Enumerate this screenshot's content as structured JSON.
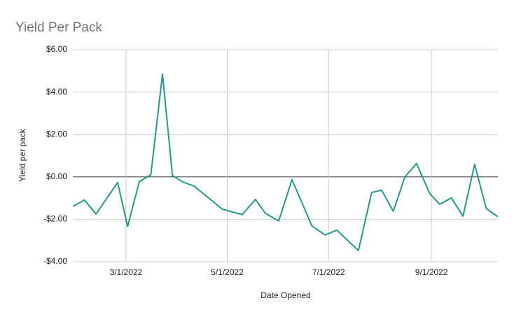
{
  "chart_data": {
    "type": "line",
    "title": "Yield Per Pack",
    "x_label": "Date Opened",
    "y_label": "Yield per pack",
    "x": [
      "2022-01-28",
      "2022-02-04",
      "2022-02-11",
      "2022-02-24",
      "2022-03-02",
      "2022-03-09",
      "2022-03-16",
      "2022-03-23",
      "2022-03-29",
      "2022-04-04",
      "2022-04-11",
      "2022-04-28",
      "2022-05-10",
      "2022-05-18",
      "2022-05-24",
      "2022-06-01",
      "2022-06-09",
      "2022-06-21",
      "2022-06-29",
      "2022-07-06",
      "2022-07-19",
      "2022-07-27",
      "2022-08-02",
      "2022-08-09",
      "2022-08-16",
      "2022-08-23",
      "2022-08-31",
      "2022-09-06",
      "2022-09-13",
      "2022-09-20",
      "2022-09-27",
      "2022-10-04",
      "2022-10-11"
    ],
    "series": [
      {
        "name": "Yield per pack",
        "color": "#26998a",
        "values": [
          -1.39,
          -1.09,
          -1.75,
          -0.26,
          -2.34,
          -0.23,
          0.1,
          4.85,
          0.07,
          -0.23,
          -0.43,
          -1.52,
          -1.78,
          -1.06,
          -1.72,
          -2.08,
          -0.13,
          -2.31,
          -2.74,
          -2.51,
          -3.47,
          -0.73,
          -0.63,
          -1.62,
          0.0,
          0.63,
          -0.79,
          -1.29,
          -0.99,
          -1.85,
          0.59,
          -1.49,
          -1.88
        ]
      }
    ],
    "xlim": [
      "2022-01-28",
      "2022-10-11"
    ],
    "xticks": [
      {
        "value": "2022-03-01",
        "label": "3/1/2022"
      },
      {
        "value": "2022-05-01",
        "label": "5/1/2022"
      },
      {
        "value": "2022-07-01",
        "label": "7/1/2022"
      },
      {
        "value": "2022-09-01",
        "label": "9/1/2022"
      }
    ],
    "ylim": [
      -4,
      6
    ],
    "yticks": [
      {
        "value": -4,
        "label": "-$4.00"
      },
      {
        "value": -2,
        "label": "-$2.00"
      },
      {
        "value": 0,
        "label": "$0.00"
      },
      {
        "value": 2,
        "label": "$2.00"
      },
      {
        "value": 4,
        "label": "$4.00"
      },
      {
        "value": 6,
        "label": "$6.00"
      }
    ],
    "grid": true
  }
}
